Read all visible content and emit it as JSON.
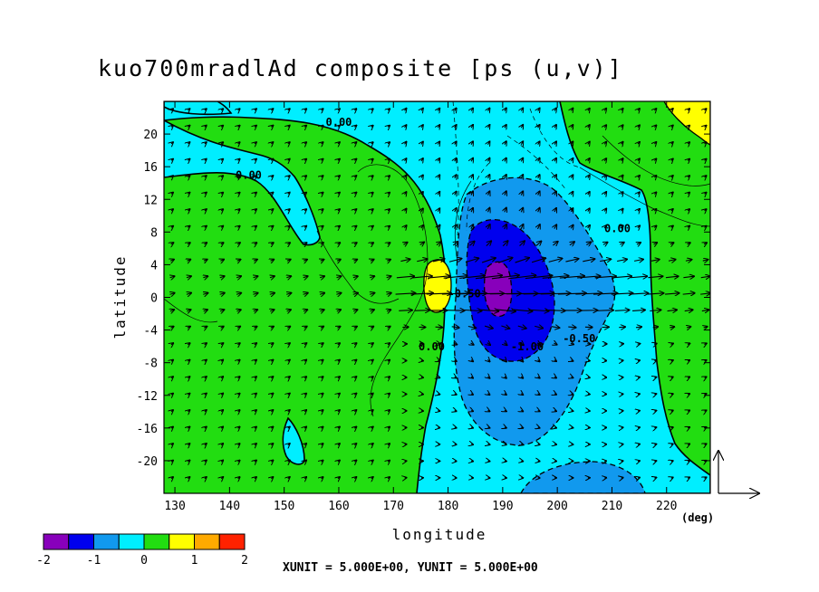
{
  "chart_data": {
    "type": "contour",
    "title": "kuo700mradlAd composite [ps (u,v)]",
    "xlabel": "longitude",
    "ylabel": "latitude",
    "x_unit_label": "(deg)",
    "unit_note": "XUNIT = 5.000E+00, YUNIT = 5.000E+00",
    "xlim": [
      128,
      228
    ],
    "ylim": [
      -24,
      24
    ],
    "x_ticks": [
      130,
      140,
      150,
      160,
      170,
      180,
      190,
      200,
      210,
      220
    ],
    "y_ticks": [
      20,
      16,
      12,
      8,
      4,
      0,
      -4,
      -8,
      -12,
      -16,
      -20
    ],
    "x_tick_labels": [
      "130",
      "140",
      "150",
      "160",
      "170",
      "180",
      "190",
      "200",
      "210",
      "220"
    ],
    "y_tick_labels": [
      "20",
      "16",
      "12",
      "8",
      "4",
      "0",
      "-4",
      "-8",
      "-12",
      "-16",
      "-20"
    ],
    "contour_labels": [
      {
        "text": "0.00",
        "x": 143.5,
        "y": 14.5
      },
      {
        "text": "0.00",
        "x": 160,
        "y": 21
      },
      {
        "text": "0.00",
        "x": 211,
        "y": 8
      },
      {
        "text": "0.00",
        "x": 177,
        "y": -6.5
      },
      {
        "text": "-0.50",
        "x": 183,
        "y": 0
      },
      {
        "text": "-1.00",
        "x": 194.5,
        "y": -6.5
      },
      {
        "text": "-0.50",
        "x": 204,
        "y": -5.5
      }
    ],
    "colorbar": {
      "tick_labels": [
        "-2",
        "-1",
        "0",
        "1",
        "2"
      ],
      "bins": [
        {
          "from": -2.0,
          "to": -1.5,
          "color": "#8800bb"
        },
        {
          "from": -1.5,
          "to": -1.0,
          "color": "#0000ee"
        },
        {
          "from": -1.0,
          "to": -0.5,
          "color": "#1199ee"
        },
        {
          "from": -0.5,
          "to": 0.0,
          "color": "#00eeff"
        },
        {
          "from": 0.0,
          "to": 0.5,
          "color": "#22dd11"
        },
        {
          "from": 0.5,
          "to": 1.0,
          "color": "#ffff00"
        },
        {
          "from": 1.0,
          "to": 1.5,
          "color": "#ffaa00"
        },
        {
          "from": 1.5,
          "to": 2.0,
          "color": "#ff2200"
        }
      ]
    }
  }
}
